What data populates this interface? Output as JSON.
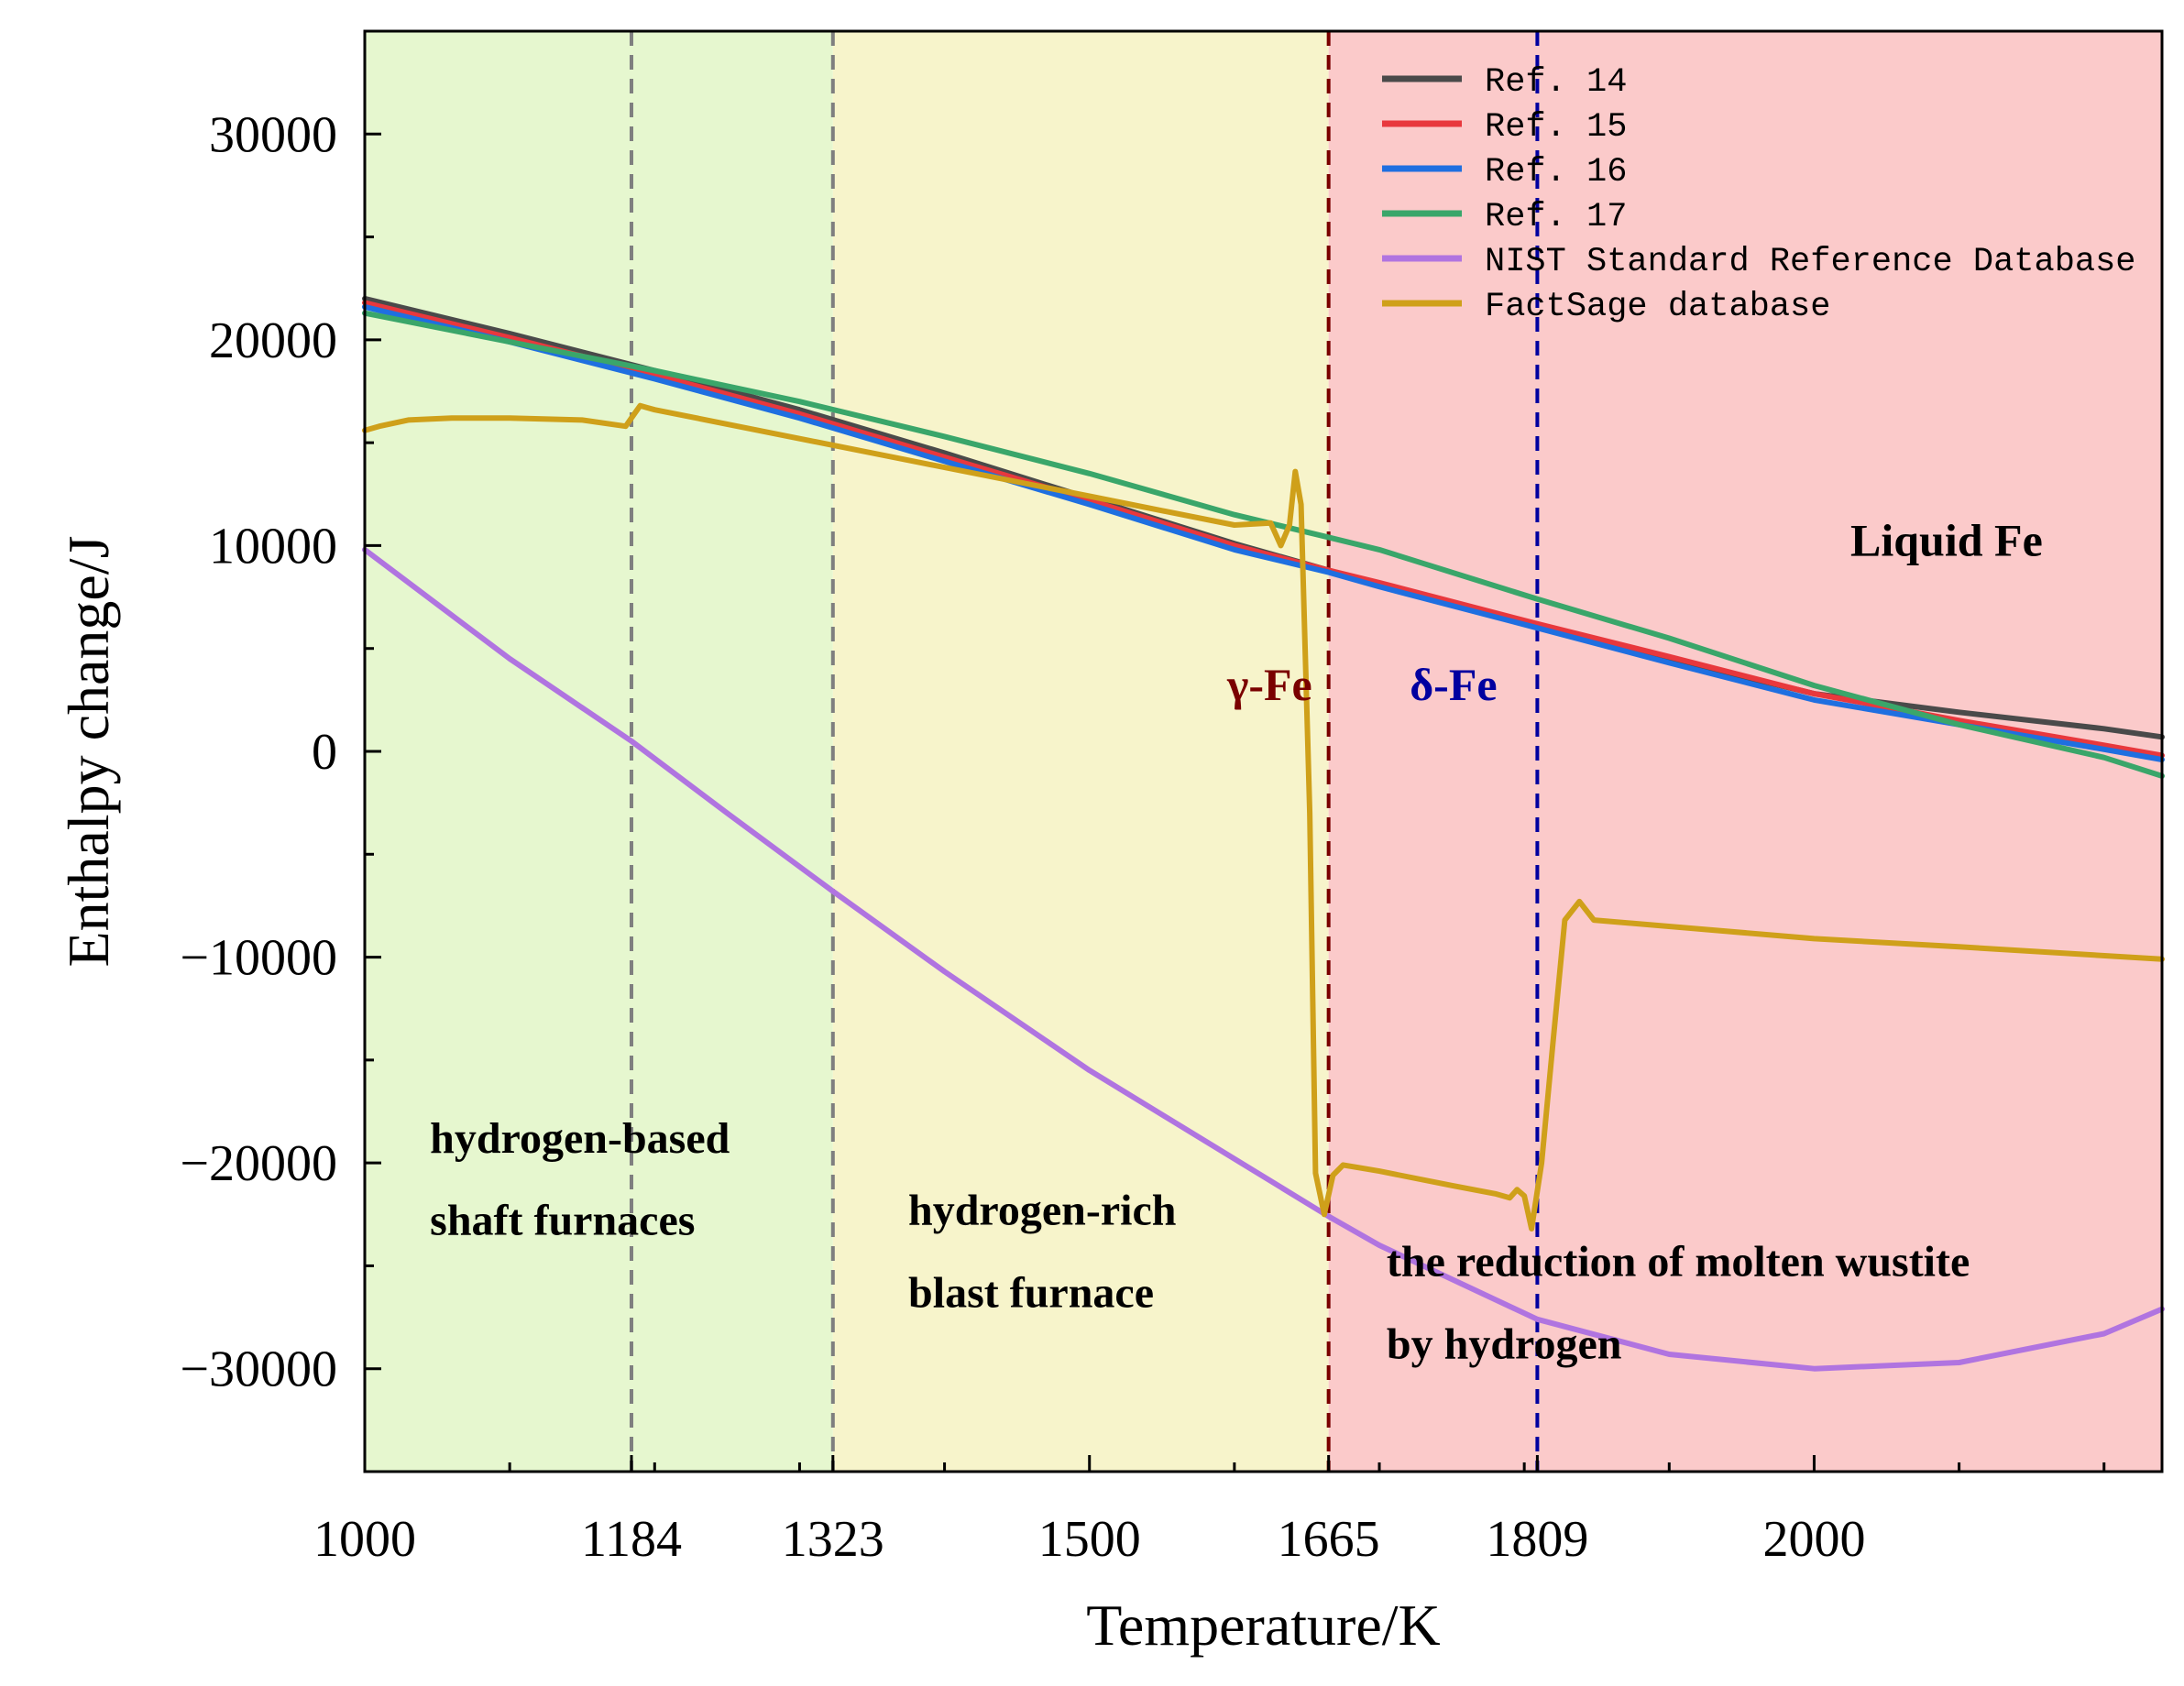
{
  "chart_data": {
    "type": "line",
    "xlabel": "Temperature/K",
    "ylabel": "Enthalpy change/J",
    "xlim": [
      1000,
      2240
    ],
    "ylim": [
      -35000,
      35000
    ],
    "x_ticks": [
      1000,
      1184,
      1323,
      1500,
      1665,
      1809,
      2000
    ],
    "y_ticks": [
      30000,
      20000,
      10000,
      0,
      -10000,
      -20000,
      -30000
    ],
    "y_tick_labels": [
      "30000",
      "20000",
      "10000",
      "0",
      "−10000",
      "−20000",
      "−30000"
    ],
    "legend_position": "top-right",
    "regions": [
      {
        "x_start": 1000,
        "x_end": 1323,
        "color": "#e6f7cf",
        "label_lines": [
          "hydrogen-based",
          "shaft furnaces"
        ],
        "label_x": 1045,
        "label_y": [
          -19500,
          -23500
        ]
      },
      {
        "x_start": 1323,
        "x_end": 1665,
        "color": "#f7f4cb",
        "label_lines": [
          "hydrogen-rich",
          "blast furnace"
        ],
        "label_x": 1375,
        "label_y": [
          -23000,
          -27000
        ]
      },
      {
        "x_start": 1665,
        "x_end": 2240,
        "color": "#fbcaca",
        "label_lines": [
          "the reduction of molten wustite",
          "by hydrogen"
        ],
        "label_x": 1705,
        "label_y": [
          -25500,
          -29500
        ]
      }
    ],
    "vlines": [
      {
        "x": 1184,
        "color": "#7f7f7f"
      },
      {
        "x": 1323,
        "color": "#7f7f7f"
      },
      {
        "x": 1665,
        "color": "#7a0000"
      },
      {
        "x": 1809,
        "color": "#0000a0"
      }
    ],
    "annotations": [
      {
        "text": "γ-Fe",
        "x": 1595,
        "y": 2500,
        "color": "#7a0000"
      },
      {
        "text": "δ-Fe",
        "x": 1721,
        "y": 2500,
        "color": "#0000a0"
      },
      {
        "text": "Liquid Fe",
        "x": 2025,
        "y": 9500,
        "color": "#000000"
      }
    ],
    "series": [
      {
        "name": "Ref.  14",
        "color": "#4a4a4a",
        "x": [
          1000,
          1100,
          1200,
          1300,
          1400,
          1500,
          1600,
          1665,
          1700,
          1809,
          1900,
          2000,
          2100,
          2200,
          2240
        ],
        "y": [
          22000,
          20300,
          18500,
          16600,
          14500,
          12300,
          10100,
          8800,
          8100,
          6100,
          4500,
          2800,
          1900,
          1100,
          700
        ]
      },
      {
        "name": "Ref.  15",
        "color": "#e8383d",
        "x": [
          1000,
          1100,
          1200,
          1300,
          1400,
          1500,
          1600,
          1665,
          1700,
          1809,
          1900,
          2000,
          2100,
          2200,
          2240
        ],
        "y": [
          21800,
          20100,
          18300,
          16400,
          14300,
          12200,
          10000,
          8800,
          8200,
          6200,
          4600,
          2800,
          1500,
          300,
          -200
        ]
      },
      {
        "name": "Ref.  16",
        "color": "#1f6fe0",
        "x": [
          1000,
          1100,
          1200,
          1300,
          1400,
          1500,
          1600,
          1665,
          1700,
          1809,
          1900,
          2000,
          2100,
          2200,
          2240
        ],
        "y": [
          21600,
          19900,
          18100,
          16200,
          14100,
          12000,
          9800,
          8700,
          8000,
          6000,
          4300,
          2500,
          1300,
          100,
          -400
        ]
      },
      {
        "name": "Ref.  17",
        "color": "#3aa66a",
        "x": [
          1000,
          1100,
          1200,
          1300,
          1400,
          1500,
          1600,
          1665,
          1700,
          1809,
          1900,
          2000,
          2100,
          2200,
          2240
        ],
        "y": [
          21300,
          19900,
          18500,
          17000,
          15300,
          13500,
          11500,
          10400,
          9800,
          7400,
          5500,
          3200,
          1300,
          -300,
          -1200
        ]
      },
      {
        "name": "NIST Standard Reference Database",
        "color": "#b074e0",
        "x": [
          1000,
          1100,
          1184,
          1250,
          1323,
          1400,
          1500,
          1600,
          1665,
          1700,
          1809,
          1900,
          2000,
          2100,
          2200,
          2240
        ],
        "y": [
          9800,
          4500,
          500,
          -3000,
          -6800,
          -10700,
          -15500,
          -19800,
          -22600,
          -24000,
          -27600,
          -29300,
          -30000,
          -29700,
          -28300,
          -27100
        ]
      },
      {
        "name": "FactSage database",
        "color": "#cfa01a",
        "x": [
          1000,
          1010,
          1030,
          1060,
          1100,
          1150,
          1180,
          1185,
          1190,
          1195,
          1200,
          1250,
          1300,
          1400,
          1500,
          1600,
          1625,
          1632,
          1638,
          1642,
          1646,
          1652,
          1656,
          1662,
          1668,
          1675,
          1700,
          1750,
          1780,
          1790,
          1795,
          1800,
          1805,
          1812,
          1820,
          1828,
          1838,
          1848,
          2000,
          2100,
          2240
        ],
        "y": [
          15600,
          15800,
          16100,
          16200,
          16200,
          16100,
          15800,
          16300,
          16800,
          16700,
          16600,
          15900,
          15200,
          13800,
          12400,
          11000,
          11100,
          10000,
          11000,
          13600,
          12000,
          -3000,
          -20500,
          -22500,
          -20600,
          -20100,
          -20400,
          -21100,
          -21500,
          -21700,
          -21300,
          -21600,
          -23200,
          -20000,
          -14000,
          -8200,
          -7300,
          -8200,
          -9100,
          -9500,
          -10100
        ]
      }
    ]
  }
}
